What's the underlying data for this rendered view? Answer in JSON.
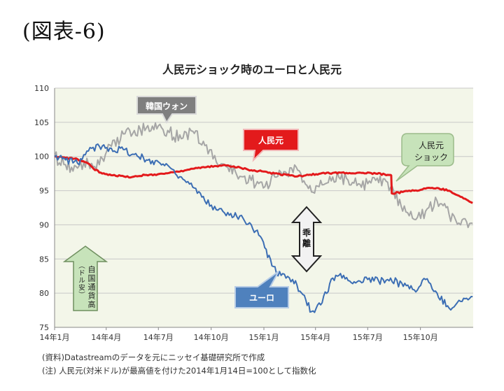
{
  "figure_label": "(図表-6)",
  "chart_data": {
    "type": "line",
    "title": "人民元ショック時のユーロと人民元",
    "xlabel": "",
    "ylabel": "",
    "ylim": [
      75,
      110
    ],
    "y_ticks": [
      75,
      80,
      85,
      90,
      95,
      100,
      105,
      110
    ],
    "x_ticks": [
      "14年1月",
      "14年4月",
      "14年7月",
      "14年10月",
      "15年1月",
      "15年4月",
      "15年7月",
      "15年10月"
    ],
    "grid": true,
    "series": [
      {
        "name": "人民元",
        "color": "#e31a1c",
        "x": [
          "2014-01-01",
          "2014-01-20",
          "2014-02-10",
          "2014-02-28",
          "2014-03-10",
          "2014-03-25",
          "2014-04-15",
          "2014-05-05",
          "2014-05-25",
          "2014-06-10",
          "2014-06-30",
          "2014-07-20",
          "2014-08-10",
          "2014-08-30",
          "2014-09-20",
          "2014-10-10",
          "2014-10-30",
          "2014-11-20",
          "2014-12-10",
          "2014-12-31",
          "2015-01-20",
          "2015-02-10",
          "2015-03-01",
          "2015-03-20",
          "2015-04-10",
          "2015-05-01",
          "2015-05-25",
          "2015-06-20",
          "2015-07-15",
          "2015-08-10",
          "2015-08-12",
          "2015-08-31",
          "2015-09-20",
          "2015-10-10",
          "2015-10-30",
          "2015-11-20",
          "2015-12-10",
          "2015-12-31"
        ],
        "y": [
          100,
          99.8,
          99.6,
          99.0,
          98.2,
          97.5,
          97.3,
          97.0,
          97.1,
          97.3,
          97.4,
          97.6,
          97.9,
          98.2,
          98.4,
          98.6,
          98.7,
          98.4,
          98.0,
          97.8,
          97.5,
          97.3,
          97.1,
          97.3,
          97.5,
          97.6,
          97.6,
          97.6,
          97.5,
          97.3,
          94.6,
          94.8,
          95.0,
          95.3,
          95.4,
          95.0,
          94.1,
          93.2
        ]
      },
      {
        "name": "ユーロ",
        "color": "#3c6eb4",
        "x": [
          "2014-01-01",
          "2014-01-20",
          "2014-02-10",
          "2014-03-01",
          "2014-03-20",
          "2014-04-10",
          "2014-05-01",
          "2014-05-20",
          "2014-06-10",
          "2014-07-01",
          "2014-07-20",
          "2014-08-10",
          "2014-08-30",
          "2014-09-20",
          "2014-10-10",
          "2014-10-30",
          "2014-11-20",
          "2014-12-10",
          "2014-12-31",
          "2015-01-15",
          "2015-01-31",
          "2015-02-20",
          "2015-03-10",
          "2015-03-25",
          "2015-04-10",
          "2015-05-01",
          "2015-05-20",
          "2015-06-10",
          "2015-07-01",
          "2015-07-20",
          "2015-08-10",
          "2015-09-01",
          "2015-09-20",
          "2015-10-10",
          "2015-10-30",
          "2015-11-20",
          "2015-12-10",
          "2015-12-31"
        ],
        "y": [
          100,
          99.5,
          99.0,
          100.8,
          101.5,
          101.2,
          101.0,
          100.3,
          99.5,
          99.2,
          98.5,
          97.0,
          95.5,
          93.5,
          92.2,
          91.8,
          91.3,
          90.0,
          87.5,
          84.0,
          82.6,
          82.0,
          79.8,
          77.3,
          78.3,
          82.2,
          82.6,
          81.5,
          82.0,
          81.8,
          82.2,
          81.0,
          80.5,
          82.0,
          80.0,
          77.8,
          78.8,
          79.5
        ]
      },
      {
        "name": "韓国ウォン",
        "color": "#a6a6a6",
        "x": [
          "2014-01-01",
          "2014-01-20",
          "2014-02-10",
          "2014-03-01",
          "2014-03-20",
          "2014-04-10",
          "2014-05-01",
          "2014-05-20",
          "2014-06-10",
          "2014-07-01",
          "2014-07-20",
          "2014-08-10",
          "2014-08-30",
          "2014-09-20",
          "2014-10-10",
          "2014-10-30",
          "2014-11-20",
          "2014-12-10",
          "2014-12-31",
          "2015-01-20",
          "2015-02-10",
          "2015-03-01",
          "2015-03-25",
          "2015-04-10",
          "2015-05-01",
          "2015-05-25",
          "2015-06-20",
          "2015-07-15",
          "2015-08-10",
          "2015-08-31",
          "2015-09-20",
          "2015-10-10",
          "2015-10-30",
          "2015-11-20",
          "2015-12-10",
          "2015-12-31"
        ],
        "y": [
          100,
          98.8,
          98.3,
          99.0,
          98.8,
          101.5,
          103.3,
          103.8,
          104.2,
          104.5,
          103.5,
          102.6,
          103.7,
          101.6,
          99.2,
          98.4,
          97.1,
          96.5,
          95.4,
          97.0,
          97.5,
          98.0,
          94.8,
          96.5,
          97.0,
          96.8,
          95.5,
          96.5,
          95.5,
          92.0,
          90.8,
          92.0,
          93.5,
          91.5,
          90.0,
          90.2
        ]
      }
    ],
    "annotations": [
      {
        "name": "korean-won-callout",
        "text": "韓国ウォン"
      },
      {
        "name": "yuan-callout",
        "text": "人民元"
      },
      {
        "name": "euro-callout",
        "text": "ユーロ"
      },
      {
        "name": "yuan-shock-callout",
        "text": "人民元\nショック"
      },
      {
        "name": "divergence-label",
        "text": "乖離"
      },
      {
        "name": "strength-label",
        "text": "自国通貨高\n(ドル安)"
      }
    ]
  },
  "notes": {
    "source": "(資料)Datastreamのデータを元にニッセイ基礎研究所で作成",
    "remark": "(注)  人民元(対米ドル)が最高値を付けた2014年1月14日=100として指数化"
  },
  "colors": {
    "plot_background": "#f3f6e9",
    "gridline": "#c8c8c8",
    "yuan_callout_fill": "#e31a1c",
    "euro_callout_fill": "#4f81bd",
    "won_callout_fill": "#7f7f7f",
    "shock_callout_fill": "#c7e3ba",
    "up_arrow_fill": "#c7e3ba"
  }
}
